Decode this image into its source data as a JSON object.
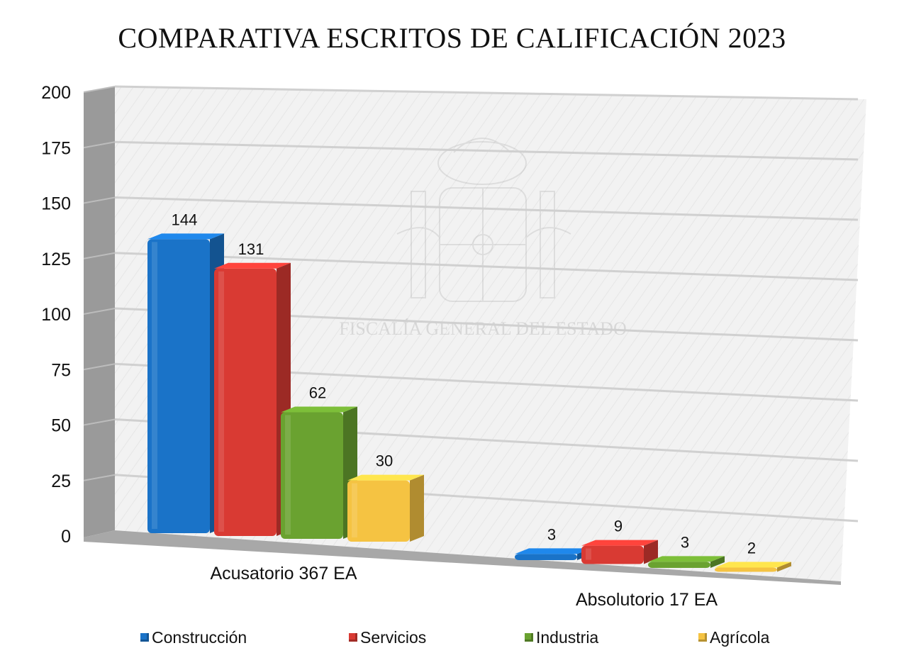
{
  "chart_data": {
    "type": "bar",
    "title": "COMPARATIVA ESCRITOS DE CALIFICACIÓN 2023",
    "categories": [
      "Acusatorio 367 EA",
      "Absolutorio 17 EA"
    ],
    "series": [
      {
        "name": "Construcción",
        "values": [
          144,
          3
        ],
        "color": "#1a73c8"
      },
      {
        "name": "Servicios",
        "values": [
          131,
          9
        ],
        "color": "#d93a33"
      },
      {
        "name": "Industria",
        "values": [
          62,
          3
        ],
        "color": "#6aa230"
      },
      {
        "name": "Agrícola",
        "values": [
          30,
          2
        ],
        "color": "#f5c342"
      }
    ],
    "yticks": [
      "200",
      "175",
      "150",
      "125",
      "100",
      "75",
      "50",
      "25",
      "0"
    ],
    "ylim": [
      0,
      200
    ],
    "grid": true,
    "legend_position": "bottom",
    "watermark": "FISCALÍA GENERAL DEL ESTADO"
  }
}
